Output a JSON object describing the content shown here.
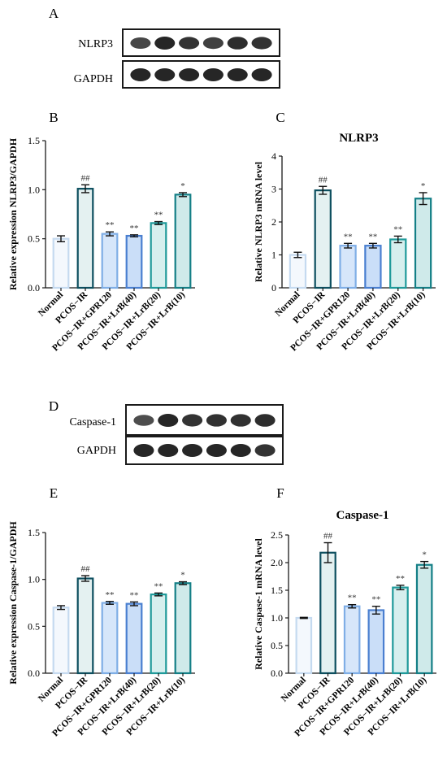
{
  "panel_labels": [
    "A",
    "B",
    "C",
    "D",
    "E",
    "F"
  ],
  "categories": [
    "Normal",
    "PCOS−IR",
    "PCOS−IR+GPR120",
    "PCOS−IR+LrB(40)",
    "PCOS−IR+LrB(20)",
    "PCOS−IR+LrB(10)"
  ],
  "colors": {
    "bar_fills": [
      "#f4f8fd",
      "#e4f1f1",
      "#d6e6fa",
      "#cadef8",
      "#d6efee",
      "#cfeaea"
    ],
    "bar_edges": [
      "#c5daf0",
      "#0d4f5f",
      "#7faee6",
      "#4a7fd0",
      "#1f9a9a",
      "#147f86"
    ],
    "axis": "#1a1a1a"
  },
  "blots": [
    {
      "panel": "A",
      "rows": [
        {
          "label": "NLRP3",
          "intensity": [
            0.75,
            1.0,
            0.9,
            0.8,
            0.95,
            0.9
          ]
        },
        {
          "label": "GAPDH",
          "intensity": [
            1.0,
            1.0,
            1.0,
            1.0,
            1.0,
            1.0
          ]
        }
      ]
    },
    {
      "panel": "D",
      "rows": [
        {
          "label": "Caspase-1",
          "intensity": [
            0.7,
            1.0,
            0.9,
            0.92,
            0.92,
            0.95
          ]
        },
        {
          "label": "GAPDH",
          "intensity": [
            1.0,
            1.0,
            1.0,
            1.0,
            1.0,
            0.9
          ]
        }
      ]
    }
  ],
  "chart_data": [
    {
      "panel": "B",
      "type": "bar",
      "title": "",
      "ylabel": "Relative expression NLRP3/GAPDH",
      "ylim": [
        0,
        1.5
      ],
      "yticks": [
        "0.0",
        "0.5",
        "1.0",
        "1.5"
      ],
      "categories": [
        "Normal",
        "PCOS−IR",
        "PCOS−IR+GPR120",
        "PCOS−IR+LrB(40)",
        "PCOS−IR+LrB(20)",
        "PCOS−IR+LrB(10)"
      ],
      "values": [
        0.5,
        1.01,
        0.55,
        0.53,
        0.66,
        0.95
      ],
      "errors": [
        0.03,
        0.04,
        0.02,
        0.01,
        0.015,
        0.02
      ],
      "annotations": [
        "",
        "##",
        "**",
        "**",
        "**",
        "*"
      ]
    },
    {
      "panel": "C",
      "type": "bar",
      "title": "NLRP3",
      "ylabel": "Relative NLRP3 mRNA level",
      "ylim": [
        0,
        4
      ],
      "yticks": [
        "0",
        "1",
        "2",
        "3",
        "4"
      ],
      "categories": [
        "Normal",
        "PCOS−IR",
        "PCOS−IR+GPR120",
        "PCOS−IR+LrB(40)",
        "PCOS−IR+LrB(20)",
        "PCOS−IR+LrB(10)"
      ],
      "values": [
        1.0,
        2.96,
        1.28,
        1.28,
        1.47,
        2.71
      ],
      "errors": [
        0.08,
        0.12,
        0.07,
        0.07,
        0.1,
        0.18
      ],
      "annotations": [
        "",
        "##",
        "**",
        "**",
        "**",
        "*"
      ]
    },
    {
      "panel": "E",
      "type": "bar",
      "title": "",
      "ylabel": "Relative expression Caspase-1/GAPDH",
      "ylim": [
        0,
        1.5
      ],
      "yticks": [
        "0.0",
        "0.5",
        "1.0",
        "1.5"
      ],
      "categories": [
        "Normal",
        "PCOS−IR",
        "PCOS−IR+GPR120",
        "PCOS−IR+LrB(40)",
        "PCOS−IR+LrB(20)",
        "PCOS−IR+LrB(10)"
      ],
      "values": [
        0.7,
        1.01,
        0.75,
        0.74,
        0.84,
        0.96
      ],
      "errors": [
        0.02,
        0.03,
        0.015,
        0.02,
        0.015,
        0.015
      ],
      "annotations": [
        "",
        "##",
        "**",
        "**",
        "**",
        "*"
      ]
    },
    {
      "panel": "F",
      "type": "bar",
      "title": "Caspase-1",
      "ylabel": "Relative Caspase-1 mRNA level",
      "ylim": [
        0,
        2.5
      ],
      "yticks": [
        "0.0",
        "0.5",
        "1.0",
        "1.5",
        "2.0",
        "2.5"
      ],
      "categories": [
        "Normal",
        "PCOS−IR",
        "PCOS−IR+GPR120",
        "PCOS−IR+LrB(40)",
        "PCOS−IR+LrB(20)",
        "PCOS−IR+LrB(10)"
      ],
      "values": [
        1.0,
        2.18,
        1.21,
        1.14,
        1.55,
        1.96
      ],
      "errors": [
        0.01,
        0.18,
        0.03,
        0.07,
        0.04,
        0.06
      ],
      "annotations": [
        "",
        "##",
        "**",
        "**",
        "**",
        "*"
      ]
    }
  ]
}
